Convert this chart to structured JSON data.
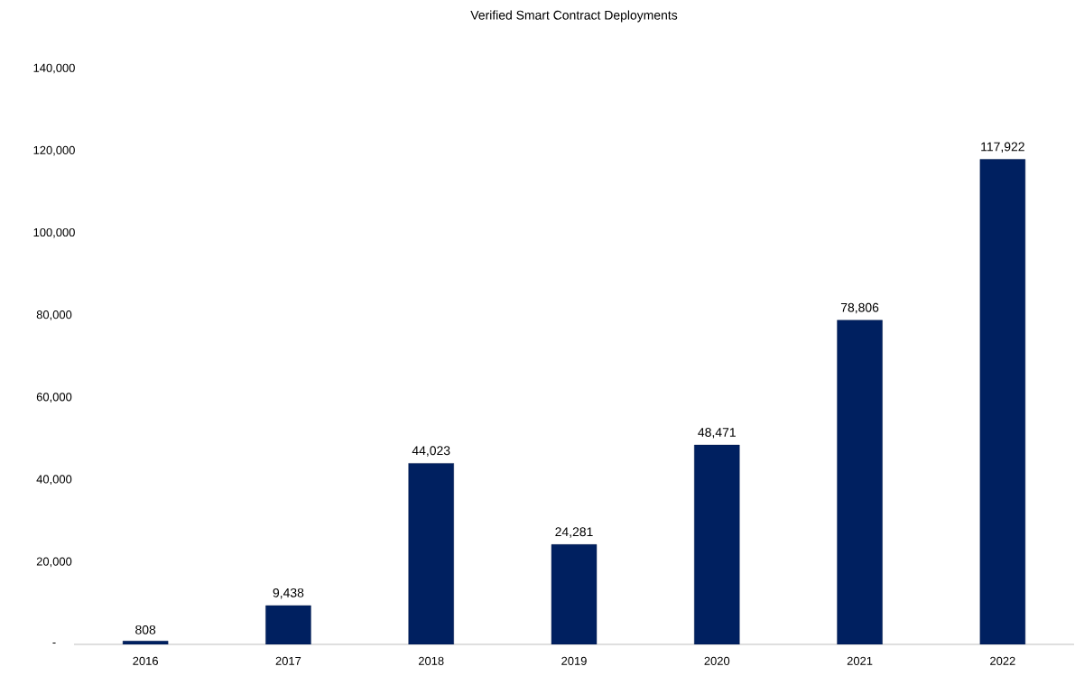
{
  "chart_data": {
    "type": "bar",
    "title": "Verified Smart Contract Deployments",
    "categories": [
      "2016",
      "2017",
      "2018",
      "2019",
      "2020",
      "2021",
      "2022"
    ],
    "values": [
      808,
      9438,
      44023,
      24281,
      48471,
      78806,
      117922
    ],
    "value_labels": [
      "808",
      "9,438",
      "44,023",
      "24,281",
      "48,471",
      "78,806",
      "117,922"
    ],
    "color": "#002060",
    "ylim": [
      0,
      140000
    ],
    "yticks": [
      {
        "value": 0,
        "label": "-"
      },
      {
        "value": 20000,
        "label": "20,000"
      },
      {
        "value": 40000,
        "label": "40,000"
      },
      {
        "value": 60000,
        "label": "60,000"
      },
      {
        "value": 80000,
        "label": "80,000"
      },
      {
        "value": 100000,
        "label": "100,000"
      },
      {
        "value": 120000,
        "label": "120,000"
      },
      {
        "value": 140000,
        "label": "140,000"
      }
    ]
  }
}
